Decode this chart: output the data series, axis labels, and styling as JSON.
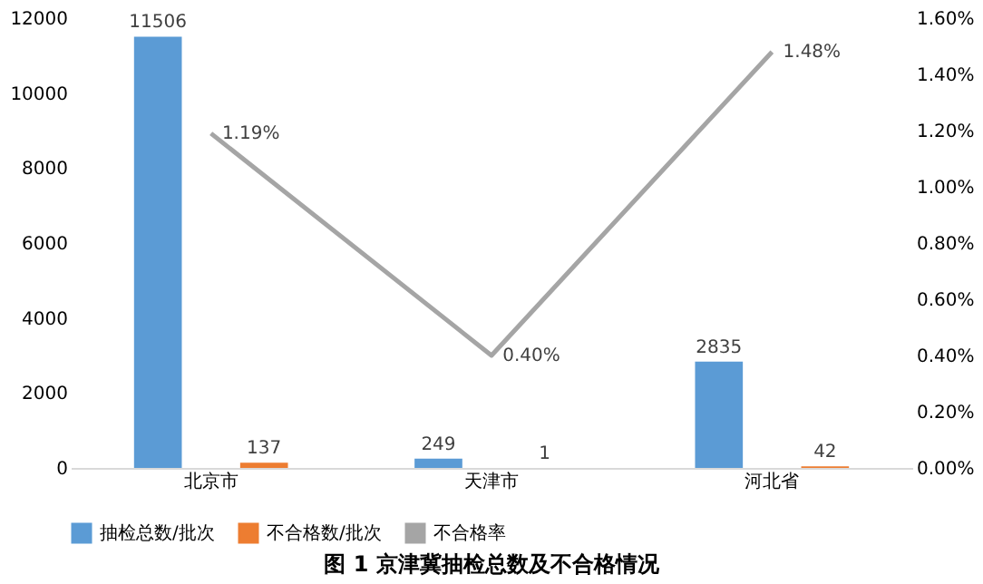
{
  "chart_data": {
    "type": "bar",
    "title": "图 1 京津冀抽检总数及不合格情况",
    "categories": [
      "北京市",
      "天津市",
      "河北省"
    ],
    "series": [
      {
        "name": "抽检总数/批次",
        "color": "#5b9bd5",
        "values": [
          11506,
          249,
          2835
        ],
        "value_labels": [
          "11506",
          "249",
          "2835"
        ]
      },
      {
        "name": "不合格数/批次",
        "color": "#ed7d31",
        "values": [
          137,
          1,
          42
        ],
        "value_labels": [
          "137",
          "1",
          "42"
        ]
      },
      {
        "name": "不合格率",
        "type": "line",
        "axis": "y2",
        "color": "#a5a5a5",
        "values": [
          1.19,
          0.4,
          1.48
        ],
        "value_labels": [
          "1.19%",
          "0.40%",
          "1.48%"
        ]
      }
    ],
    "ylim": [
      0,
      12000
    ],
    "yticks": [
      0,
      2000,
      4000,
      6000,
      8000,
      10000,
      12000
    ],
    "y2lim": [
      0,
      1.6
    ],
    "y2ticks": [
      {
        "value": 0,
        "label": "0.00%"
      },
      {
        "value": 0.2,
        "label": "0.20%"
      },
      {
        "value": 0.4,
        "label": "0.40%"
      },
      {
        "value": 0.6,
        "label": "0.60%"
      },
      {
        "value": 0.8,
        "label": "0.80%"
      },
      {
        "value": 1.0,
        "label": "1.00%"
      },
      {
        "value": 1.2,
        "label": "1.20%"
      },
      {
        "value": 1.4,
        "label": "1.40%"
      },
      {
        "value": 1.6,
        "label": "1.60%"
      }
    ],
    "grid": false,
    "legend": "bottom",
    "marker": "none",
    "line_style": "solid"
  }
}
